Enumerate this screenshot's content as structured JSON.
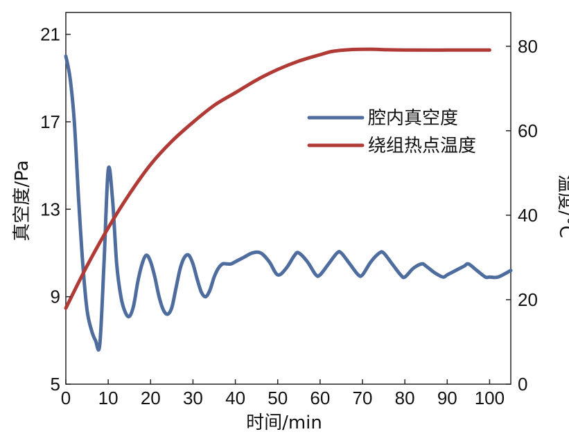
{
  "chart_data": {
    "type": "line",
    "xlabel": "时间/min",
    "ylabel_left": "真空度/Pa",
    "ylabel_right": "温度/°C",
    "xlim": [
      0,
      105
    ],
    "ylim_left": [
      5,
      22
    ],
    "ylim_right": [
      0,
      88
    ],
    "x_ticks": [
      0,
      10,
      20,
      30,
      40,
      50,
      60,
      70,
      80,
      90,
      100
    ],
    "y_left_ticks": [
      5,
      9,
      13,
      17,
      21
    ],
    "y_right_ticks": [
      0,
      20,
      40,
      60,
      80
    ],
    "legend_position": "right-center",
    "grid": false,
    "series": [
      {
        "name": "腔内真空度",
        "axis": "left",
        "color": "#4e6d9e",
        "x": [
          0,
          1,
          2,
          3,
          4,
          5,
          6,
          7,
          8,
          9,
          10,
          11,
          12,
          13,
          14,
          15,
          16,
          17,
          18,
          19,
          20,
          21,
          22,
          23,
          24,
          25,
          26,
          27,
          28,
          29,
          30,
          31,
          32,
          33,
          34,
          35,
          36,
          37,
          38,
          39,
          40,
          42,
          44,
          46,
          48,
          50,
          52,
          54,
          55,
          57,
          59,
          60,
          62,
          64,
          65,
          67,
          69,
          70,
          72,
          74,
          75,
          77,
          79,
          80,
          82,
          84,
          85,
          87,
          89,
          90,
          92,
          94,
          95,
          97,
          99,
          100,
          102,
          105
        ],
        "values": [
          20.0,
          19.0,
          17.0,
          13.5,
          10.5,
          8.4,
          7.5,
          7.0,
          6.8,
          10.5,
          14.8,
          13.5,
          10.5,
          9.0,
          8.3,
          8.1,
          8.6,
          9.7,
          10.5,
          10.9,
          10.6,
          9.9,
          9.0,
          8.4,
          8.2,
          8.5,
          9.4,
          10.3,
          10.8,
          10.9,
          10.5,
          9.8,
          9.2,
          9.0,
          9.3,
          9.9,
          10.3,
          10.5,
          10.5,
          10.5,
          10.6,
          10.8,
          11.0,
          11.0,
          10.6,
          10.0,
          10.3,
          10.9,
          11.0,
          10.6,
          10.0,
          10.0,
          10.5,
          11.0,
          11.0,
          10.5,
          10.0,
          10.0,
          10.6,
          11.0,
          11.0,
          10.5,
          10.0,
          9.9,
          10.3,
          10.5,
          10.4,
          10.1,
          9.9,
          10.0,
          10.2,
          10.4,
          10.5,
          10.2,
          9.9,
          9.9,
          9.9,
          10.2
        ]
      },
      {
        "name": "绕组热点温度",
        "axis": "right",
        "color": "#b03a36",
        "x": [
          0,
          5,
          10,
          15,
          20,
          25,
          30,
          35,
          40,
          45,
          50,
          55,
          60,
          63,
          67,
          72,
          75,
          80,
          90,
          100
        ],
        "values": [
          18,
          28,
          37,
          45,
          52,
          57.5,
          62,
          66,
          69,
          72,
          74.5,
          76.5,
          78,
          78.8,
          79.2,
          79.3,
          79.2,
          79.1,
          79.1,
          79.1
        ]
      }
    ]
  }
}
